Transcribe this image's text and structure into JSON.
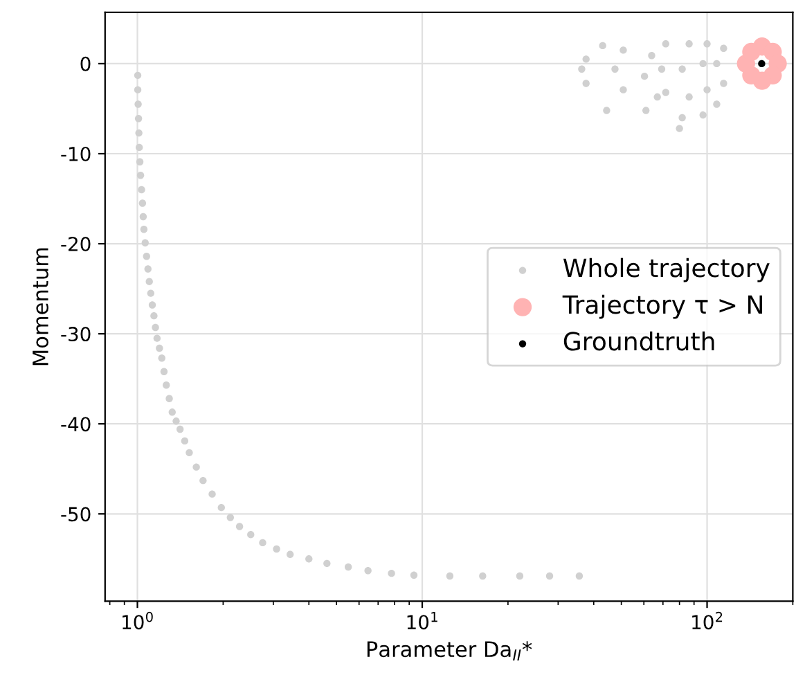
{
  "chart_data": {
    "type": "scatter",
    "xlabel": "Parameter Da$_{II}$*",
    "ylabel": "Momentum",
    "log": "x",
    "grid": true,
    "legend": "right",
    "marker": "circle",
    "xlim": [
      0.77,
      200
    ],
    "xticks": [
      {
        "value": 1,
        "label": "10$^{0}$"
      },
      {
        "value": 10,
        "label": "10$^{1}$"
      },
      {
        "value": 100,
        "label": "10$^{2}$"
      }
    ],
    "ylim": [
      -59.7,
      5.7
    ],
    "yticks": [
      0,
      -10,
      -20,
      -30,
      -40,
      -50
    ],
    "series": [
      {
        "name": "Whole trajectory",
        "color": "#d0d0d0",
        "x": [
          1.003,
          1.003,
          1.006,
          1.009,
          1.012,
          1.015,
          1.02,
          1.026,
          1.034,
          1.042,
          1.048,
          1.054,
          1.065,
          1.077,
          1.089,
          1.101,
          1.114,
          1.128,
          1.143,
          1.157,
          1.172,
          1.195,
          1.218,
          1.24,
          1.263,
          1.294,
          1.325,
          1.368,
          1.412,
          1.466,
          1.521,
          1.61,
          1.7,
          1.83,
          1.971,
          2.12,
          2.284,
          2.5,
          2.753,
          3.08,
          3.437,
          4.0,
          4.628,
          5.5,
          6.45,
          7.8,
          9.35,
          12.5,
          16.3,
          22.0,
          28.0,
          35.6,
          43.0,
          37.6,
          36.3,
          37.6,
          44.4,
          50.8,
          47.5,
          50.8,
          61.0,
          63.9,
          60.3,
          66.9,
          81.8,
          71.6,
          69.3,
          71.6,
          80.0,
          86.5,
          81.8,
          86.5,
          96.8,
          100,
          96.8,
          100,
          108.1,
          114.3,
          108.1,
          114.3
        ],
        "values": [
          -1.3,
          -2.9,
          -4.5,
          -6.1,
          -7.7,
          -9.3,
          -10.9,
          -12.4,
          -14.0,
          -15.5,
          -17.0,
          -18.4,
          -19.9,
          -21.4,
          -22.8,
          -24.2,
          -25.5,
          -26.8,
          -28.0,
          -29.3,
          -30.5,
          -31.6,
          -32.7,
          -34.2,
          -35.7,
          -37.2,
          -38.7,
          -39.7,
          -40.6,
          -41.9,
          -43.2,
          -44.8,
          -46.3,
          -47.8,
          -49.3,
          -50.4,
          -51.4,
          -52.3,
          -53.2,
          -53.9,
          -54.5,
          -55.0,
          -55.5,
          -55.9,
          -56.3,
          -56.6,
          -56.8,
          -56.9,
          -56.9,
          -56.9,
          -56.9,
          -56.9,
          2.0,
          0.5,
          -0.6,
          -2.2,
          -5.2,
          1.5,
          -0.6,
          -2.9,
          -5.2,
          0.9,
          -1.4,
          -3.7,
          -6.0,
          2.2,
          -0.6,
          -3.2,
          -7.2,
          2.2,
          -0.6,
          -3.7,
          -5.7,
          2.2,
          0.0,
          -2.9,
          -4.5,
          1.7,
          0.0,
          -2.2
        ]
      },
      {
        "name": "Trajectory τ > N",
        "color": "#ffb3b3",
        "x": [
          156.0,
          170.0,
          177.0,
          170.0,
          156.0,
          143.0,
          137.0,
          143.0
        ],
        "values": [
          1.9,
          1.3,
          0,
          -1.3,
          -1.9,
          -1.3,
          0,
          1.3
        ]
      },
      {
        "name": "Groundtruth",
        "color": "#000000",
        "x": [
          155.5
        ],
        "values": [
          0
        ]
      }
    ]
  }
}
